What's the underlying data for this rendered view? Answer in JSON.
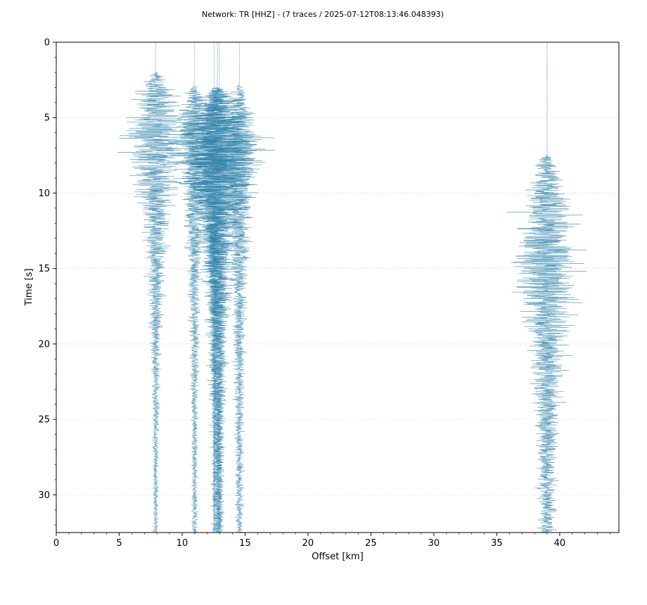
{
  "chart_data": {
    "type": "line",
    "orientation": "vertical-wiggle",
    "title": "Network: TR [HHZ] - (7 traces / 2025-07-12T08:13:46.048393)",
    "xlabel": "Offset [km]",
    "ylabel": "Time [s]",
    "xlim": [
      0,
      44.7
    ],
    "ylim": [
      32.5,
      0
    ],
    "y_inverted": true,
    "x_major_ticks": [
      0,
      5,
      10,
      15,
      20,
      25,
      30,
      35,
      40
    ],
    "x_tick_labels": [
      "0",
      "5",
      "10",
      "15",
      "20",
      "25",
      "30",
      "35",
      "40"
    ],
    "x_minor_step": 1,
    "y_major_ticks": [
      0,
      5,
      10,
      15,
      20,
      25,
      30
    ],
    "y_tick_labels": [
      "0",
      "5",
      "10",
      "15",
      "20",
      "25",
      "30"
    ],
    "y_minor_step": 1,
    "grid": "horizontal dotted at major y ticks",
    "legend": "none",
    "trace_color": "#2b7fa8",
    "grid_color": "#cccccc",
    "series": [
      {
        "offset": 7.9,
        "onset": 2.0,
        "peak_time": 6.5,
        "peak_amp": 3.2,
        "decay": 5.5,
        "tail_amp": 0.22,
        "seed": 11
      },
      {
        "offset": 11.0,
        "onset": 2.9,
        "peak_time": 6.0,
        "peak_amp": 2.0,
        "decay": 6.0,
        "tail_amp": 0.25,
        "seed": 23
      },
      {
        "offset": 12.55,
        "onset": 3.0,
        "peak_time": 7.5,
        "peak_amp": 2.2,
        "decay": 5.5,
        "tail_amp": 0.12,
        "seed": 37
      },
      {
        "offset": 12.8,
        "onset": 3.0,
        "peak_time": 7.0,
        "peak_amp": 4.6,
        "decay": 6.0,
        "tail_amp": 0.42,
        "seed": 41
      },
      {
        "offset": 12.95,
        "onset": 3.1,
        "peak_time": 8.0,
        "peak_amp": 3.6,
        "decay": 6.0,
        "tail_amp": 0.35,
        "seed": 53
      },
      {
        "offset": 14.55,
        "onset": 2.8,
        "peak_time": 7.5,
        "peak_amp": 1.9,
        "decay": 7.0,
        "tail_amp": 0.3,
        "seed": 67
      },
      {
        "offset": 39.0,
        "onset": 7.5,
        "peak_time": 14.8,
        "peak_amp": 3.5,
        "decay": 6.5,
        "tail_amp": 0.55,
        "seed": 79
      }
    ]
  }
}
